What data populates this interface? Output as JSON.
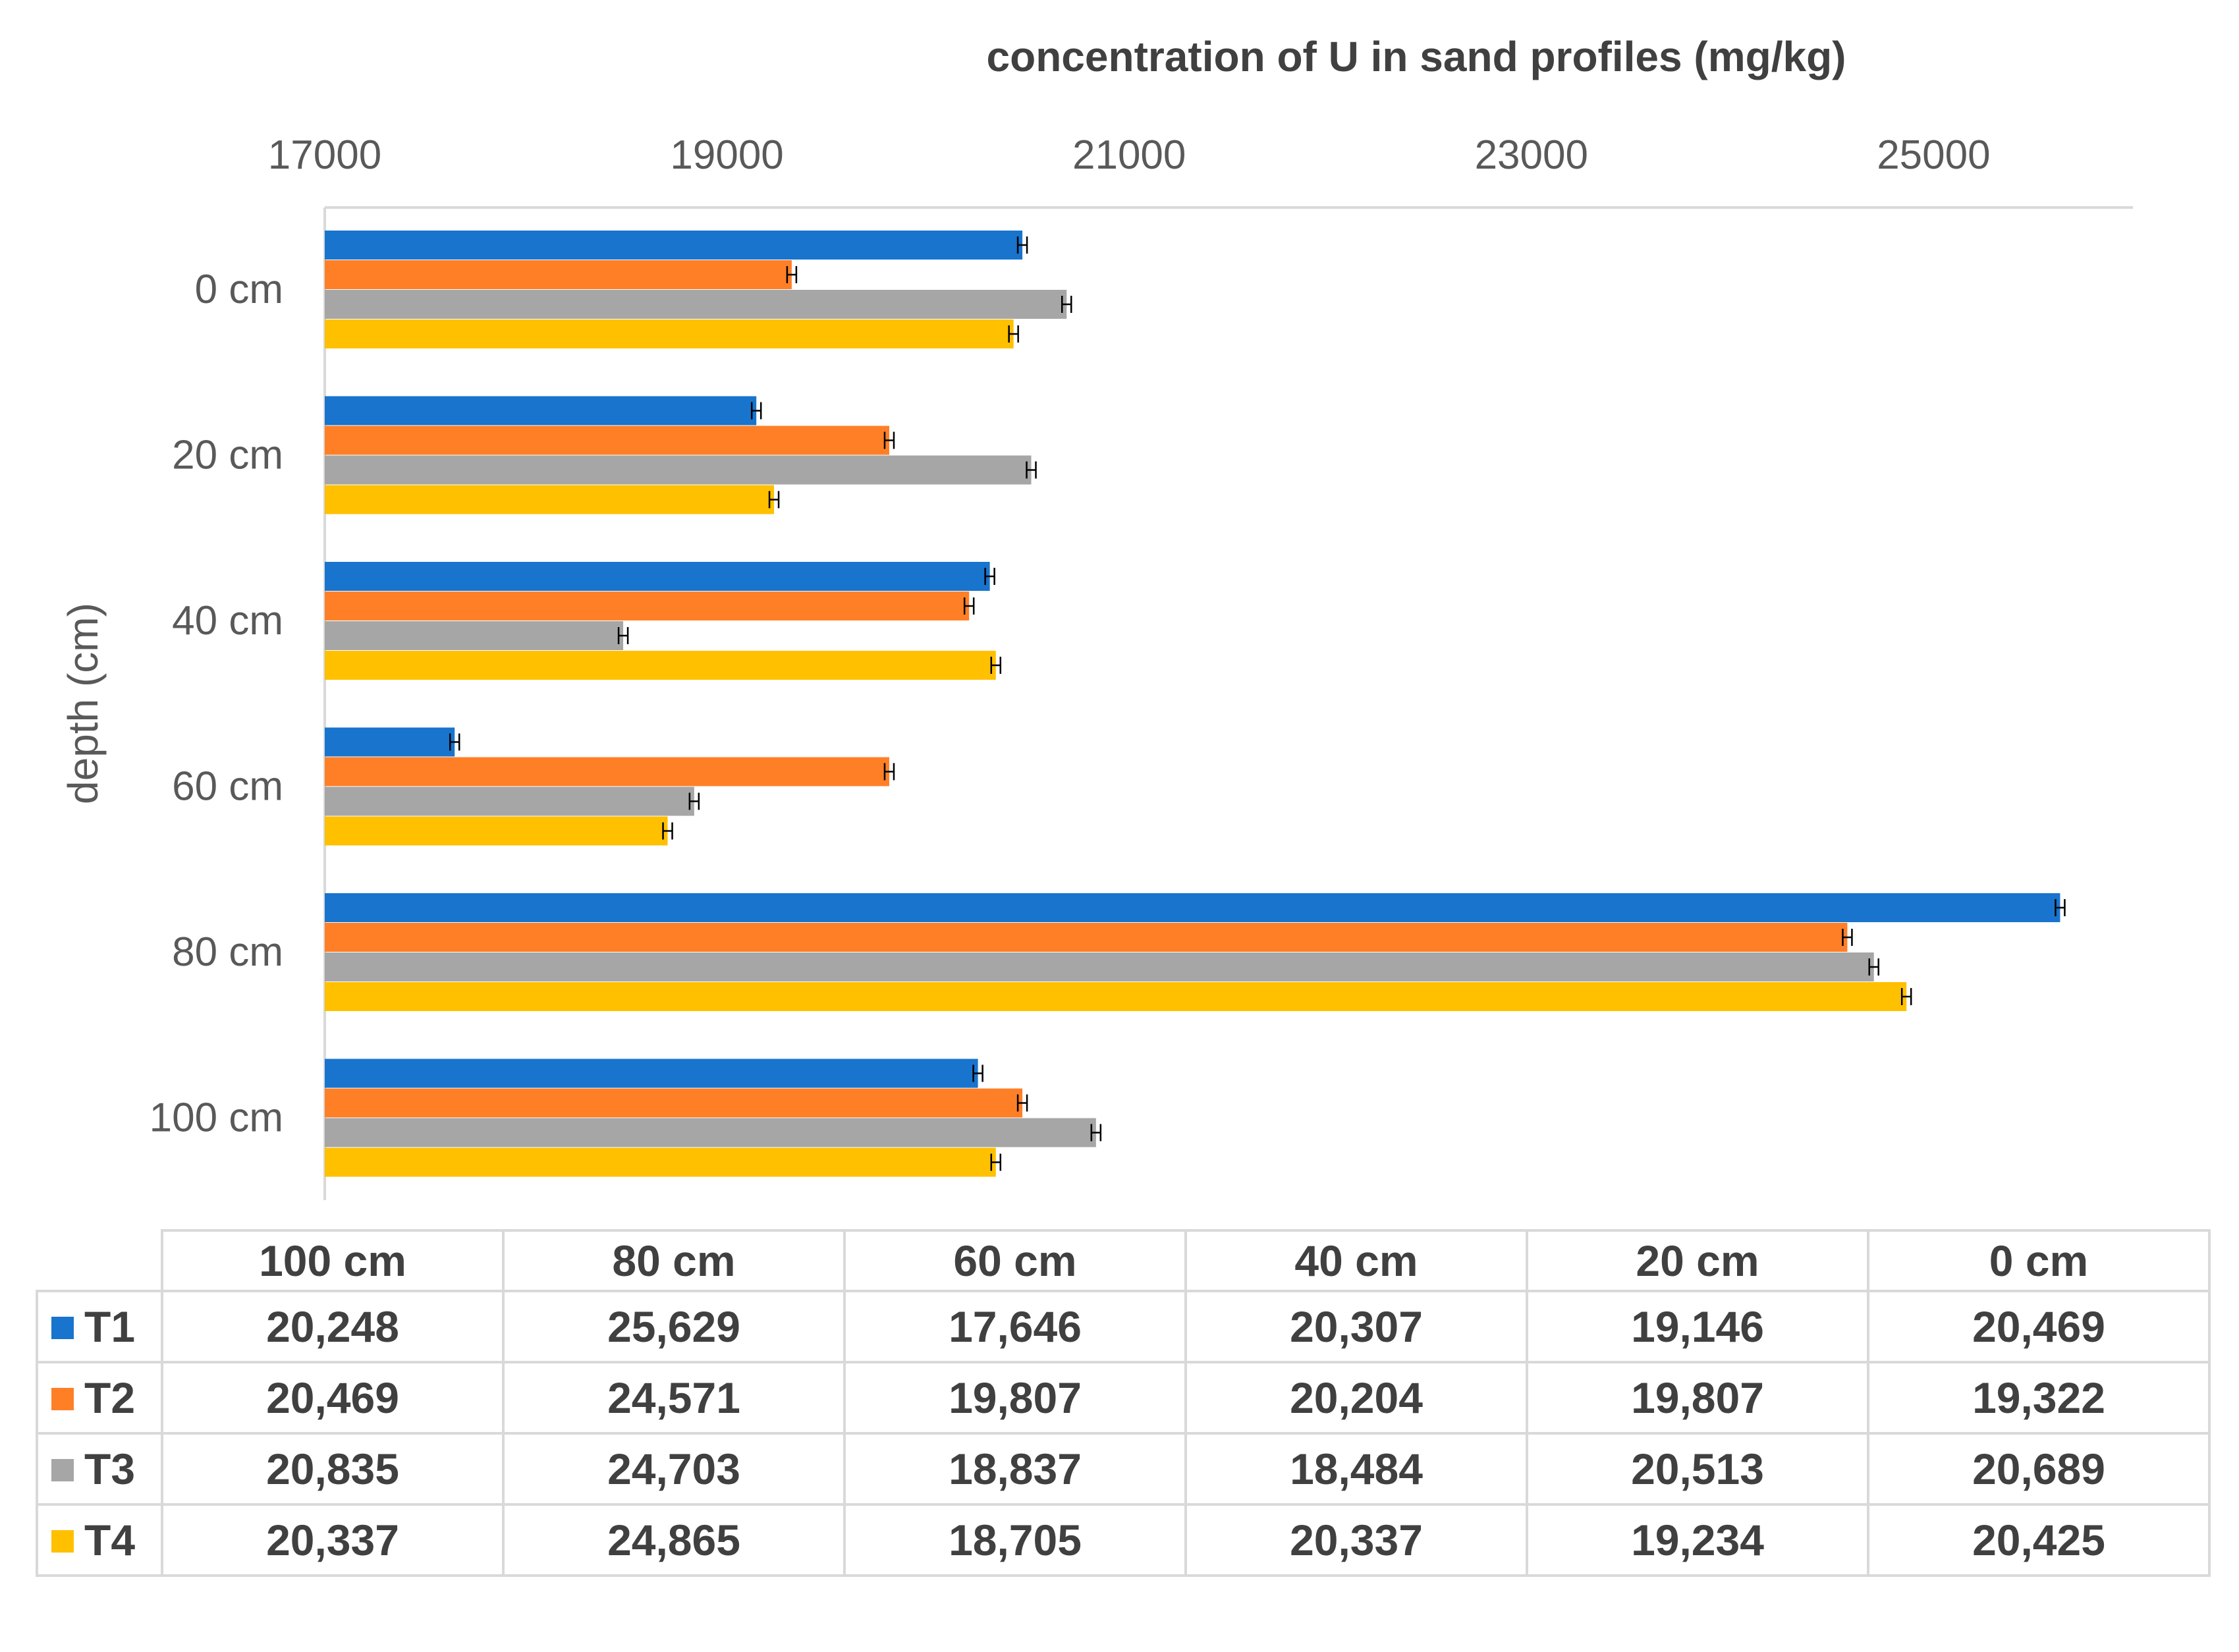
{
  "chart_data": {
    "type": "bar",
    "orientation": "horizontal",
    "title": "concentration of U in sand profiles (mg/kg)",
    "ylabel": "depth (cm)",
    "xlim": [
      17000,
      26000
    ],
    "xticks": [
      "17000",
      "19000",
      "21000",
      "23000",
      "25000"
    ],
    "categories": [
      "0 cm",
      "20 cm",
      "40 cm",
      "60 cm",
      "80 cm",
      "100 cm"
    ],
    "series": [
      {
        "name": "T1",
        "color": "#1874CD",
        "values": [
          20469,
          19146,
          20307,
          17646,
          25629,
          20248
        ]
      },
      {
        "name": "T2",
        "color": "#FF7F27",
        "values": [
          19322,
          19807,
          20204,
          19807,
          24571,
          20469
        ]
      },
      {
        "name": "T3",
        "color": "#A6A6A6",
        "values": [
          20689,
          20513,
          18484,
          18837,
          24703,
          20835
        ]
      },
      {
        "name": "T4",
        "color": "#FFC000",
        "values": [
          20425,
          19234,
          20337,
          18705,
          24865,
          20337
        ]
      }
    ],
    "error_bars": true,
    "grid": false,
    "axis_position": "top",
    "legend": "data-table"
  },
  "table": {
    "headers": [
      "100 cm",
      "80 cm",
      "60 cm",
      "40 cm",
      "20 cm",
      "0 cm"
    ],
    "rows": [
      {
        "label": "T1",
        "color": "#1874CD",
        "cells": [
          "20,248",
          "25,629",
          "17,646",
          "20,307",
          "19,146",
          "20,469"
        ]
      },
      {
        "label": "T2",
        "color": "#FF7F27",
        "cells": [
          "20,469",
          "24,571",
          "19,807",
          "20,204",
          "19,807",
          "19,322"
        ]
      },
      {
        "label": "T3",
        "color": "#A6A6A6",
        "cells": [
          "20,835",
          "24,703",
          "18,837",
          "18,484",
          "20,513",
          "20,689"
        ]
      },
      {
        "label": "T4",
        "color": "#FFC000",
        "cells": [
          "20,337",
          "24,865",
          "18,705",
          "20,337",
          "19,234",
          "20,425"
        ]
      }
    ]
  }
}
